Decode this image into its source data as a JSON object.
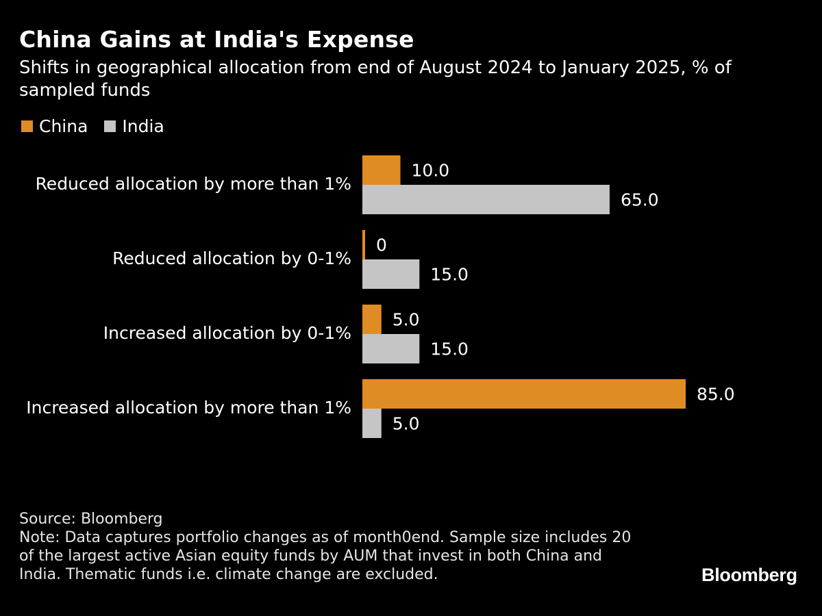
{
  "header": {
    "title": "China Gains at India's Expense",
    "subtitle": "Shifts in geographical allocation from end of August 2024 to January 2025, % of sampled funds"
  },
  "legend": [
    {
      "label": "China",
      "color": "#e08c24"
    },
    {
      "label": "India",
      "color": "#c5c5c5"
    }
  ],
  "chart_data": {
    "type": "bar",
    "orientation": "horizontal",
    "title": "China Gains at India's Expense",
    "subtitle": "Shifts in geographical allocation from end of August 2024 to January 2025, % of sampled funds",
    "categories": [
      "Reduced allocation by more than 1%",
      "Reduced allocation by 0-1%",
      "Increased allocation by 0-1%",
      "Increased allocation by more than 1%"
    ],
    "series": [
      {
        "name": "China",
        "color": "#e08c24",
        "values": [
          10.0,
          0,
          5.0,
          85.0
        ],
        "labels": [
          "10.0",
          "0",
          "5.0",
          "85.0"
        ]
      },
      {
        "name": "India",
        "color": "#c5c5c5",
        "values": [
          65.0,
          15.0,
          15.0,
          5.0
        ],
        "labels": [
          "65.0",
          "15.0",
          "15.0",
          "5.0"
        ]
      }
    ],
    "xlim": [
      0,
      85
    ],
    "grid": false,
    "legend_position": "top-left"
  },
  "footer": {
    "source": "Source: Bloomberg",
    "note": "Note: Data captures portfolio changes as of month0end. Sample size includes 20 of the largest active Asian equity funds by AUM that invest in both China and India. Thematic funds i.e. climate change are excluded."
  },
  "brand": {
    "logo_text": "Bloomberg"
  }
}
